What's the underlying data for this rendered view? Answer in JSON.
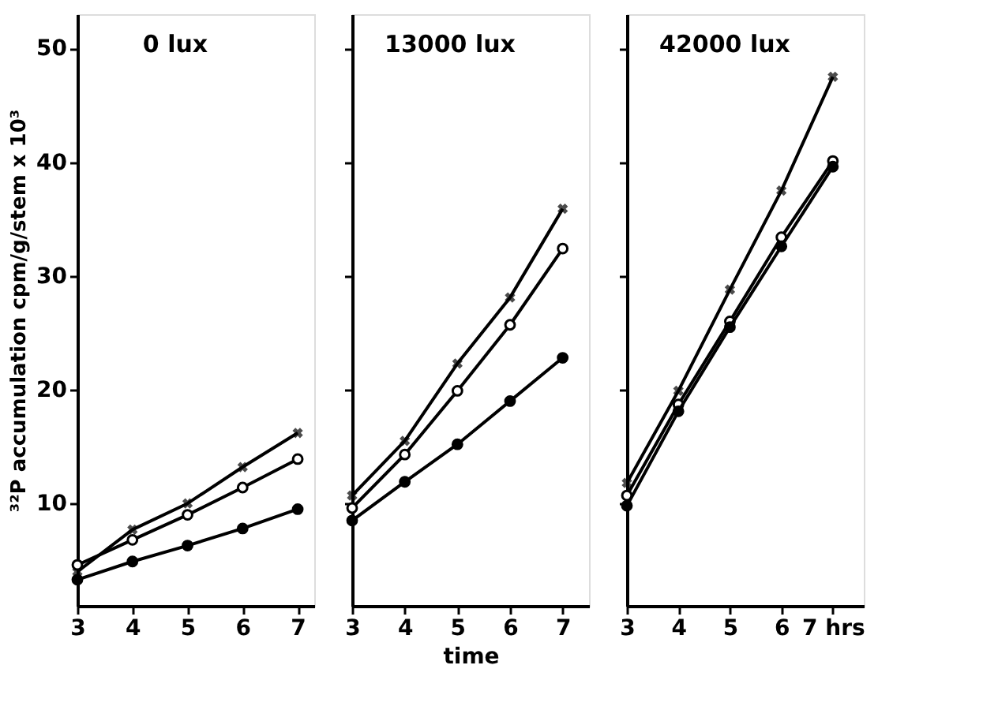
{
  "chart_data": [
    {
      "type": "line",
      "title": "0 lux",
      "ylabel": "³²P accumulation cpm/g/stem x 10³",
      "x": [
        3,
        4,
        5,
        6,
        7
      ],
      "xlim": [
        3,
        7.3
      ],
      "xticks": [
        3,
        4,
        5,
        6,
        7
      ],
      "ylim": [
        1,
        53
      ],
      "yticks": [
        10,
        20,
        30,
        40,
        50
      ],
      "grid": false,
      "series": [
        {
          "color": "#000000",
          "marker": "cross",
          "values": [
            4.0,
            7.7,
            10.0,
            13.2,
            16.2
          ]
        },
        {
          "color": "#000000",
          "marker": "circle",
          "values": [
            4.6,
            6.8,
            9.0,
            11.4,
            13.9
          ]
        },
        {
          "color": "#000000",
          "marker": "circle",
          "values": [
            3.3,
            4.9,
            6.3,
            7.8,
            9.5
          ]
        }
      ]
    },
    {
      "type": "line",
      "title": "13000 lux",
      "xlabel": "time",
      "x": [
        3,
        4,
        5,
        6,
        7
      ],
      "xlim": [
        3,
        7.5
      ],
      "xticks": [
        3,
        4,
        5,
        6,
        7
      ],
      "ylim": [
        1,
        53
      ],
      "yticks": [
        {
          "value": 10,
          "label": null
        },
        {
          "value": 20,
          "label": null
        },
        {
          "value": 30,
          "label": null
        },
        {
          "value": 40,
          "label": null
        },
        {
          "value": 50,
          "label": null
        }
      ],
      "tick_labels": "x",
      "grid": false,
      "series": [
        {
          "color": "#000000",
          "marker": "cross",
          "values": [
            10.7,
            15.5,
            22.3,
            28.1,
            35.9
          ]
        },
        {
          "color": "#000000",
          "marker": "circle",
          "values": [
            9.6,
            14.3,
            19.9,
            25.7,
            32.4
          ]
        },
        {
          "color": "#000000",
          "marker": "circle",
          "values": [
            8.5,
            11.9,
            15.2,
            19.0,
            22.8
          ]
        }
      ]
    },
    {
      "type": "line",
      "title": "42000 lux",
      "x": [
        3,
        4,
        5,
        6,
        7
      ],
      "xlim": [
        3,
        7.6
      ],
      "xticks": [
        3,
        4,
        5,
        6,
        {
          "value": 7,
          "label": "7 hrs"
        }
      ],
      "ylim": [
        1,
        53
      ],
      "yticks": [
        {
          "value": 10,
          "label": null
        },
        {
          "value": 20,
          "label": null
        },
        {
          "value": 30,
          "label": null
        },
        {
          "value": 40,
          "label": null
        },
        {
          "value": 50,
          "label": null
        }
      ],
      "tick_labels": "x",
      "grid": false,
      "series": [
        {
          "color": "#000000",
          "marker": "cross",
          "values": [
            11.8,
            19.9,
            28.8,
            37.5,
            47.5
          ]
        },
        {
          "color": "#000000",
          "marker": "circle",
          "values": [
            10.7,
            18.7,
            26.0,
            33.4,
            40.1
          ]
        },
        {
          "color": "#000000",
          "marker": "circle",
          "values": [
            9.8,
            18.1,
            25.5,
            32.6,
            39.6
          ]
        }
      ]
    }
  ]
}
